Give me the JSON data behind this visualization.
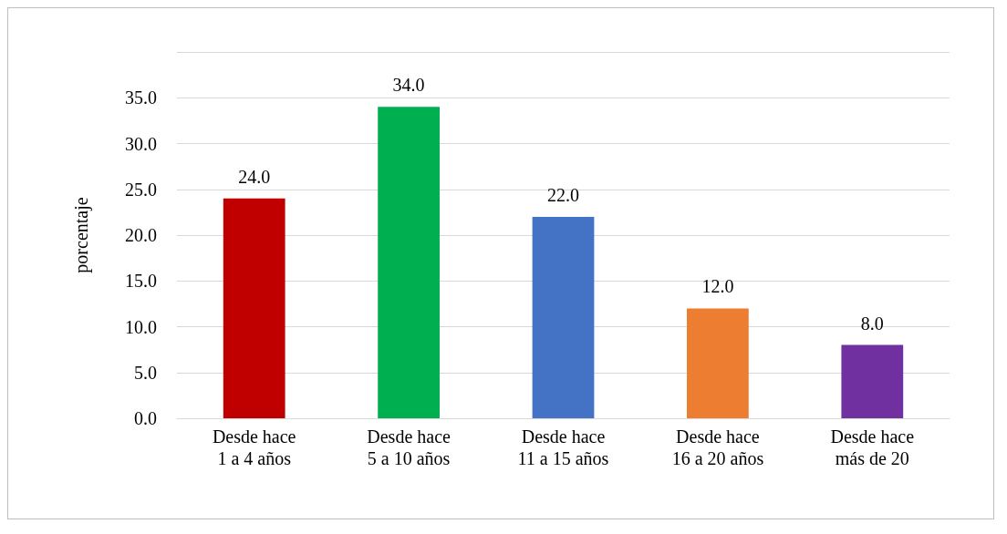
{
  "chart_data": {
    "type": "bar",
    "ylabel": "porcentaje",
    "categories": [
      "Desde hace\n1 a 4 años",
      "Desde hace\n5 a 10 años",
      "Desde hace\n11 a 15 años",
      "Desde hace\n16 a 20 años",
      "Desde hace\nmás de 20"
    ],
    "values": [
      24,
      34,
      22,
      12,
      8
    ],
    "colors": [
      "#c00000",
      "#00b050",
      "#4472c4",
      "#ed7d31",
      "#7030a0"
    ],
    "value_labels": [
      "24.0",
      "34.0",
      "22.0",
      "12.0",
      "8.0"
    ],
    "ylim": [
      0,
      40
    ],
    "yticks": [
      {
        "value": 0,
        "label": "0.0"
      },
      {
        "value": 5,
        "label": "5.0"
      },
      {
        "value": 10,
        "label": "10.0"
      },
      {
        "value": 15,
        "label": "15.0"
      },
      {
        "value": 20,
        "label": "20.0"
      },
      {
        "value": 25,
        "label": "25.0"
      },
      {
        "value": 30,
        "label": "30.0"
      },
      {
        "value": 35,
        "label": "35.0"
      },
      {
        "value": 40,
        "label": null
      }
    ],
    "grid": "y"
  }
}
